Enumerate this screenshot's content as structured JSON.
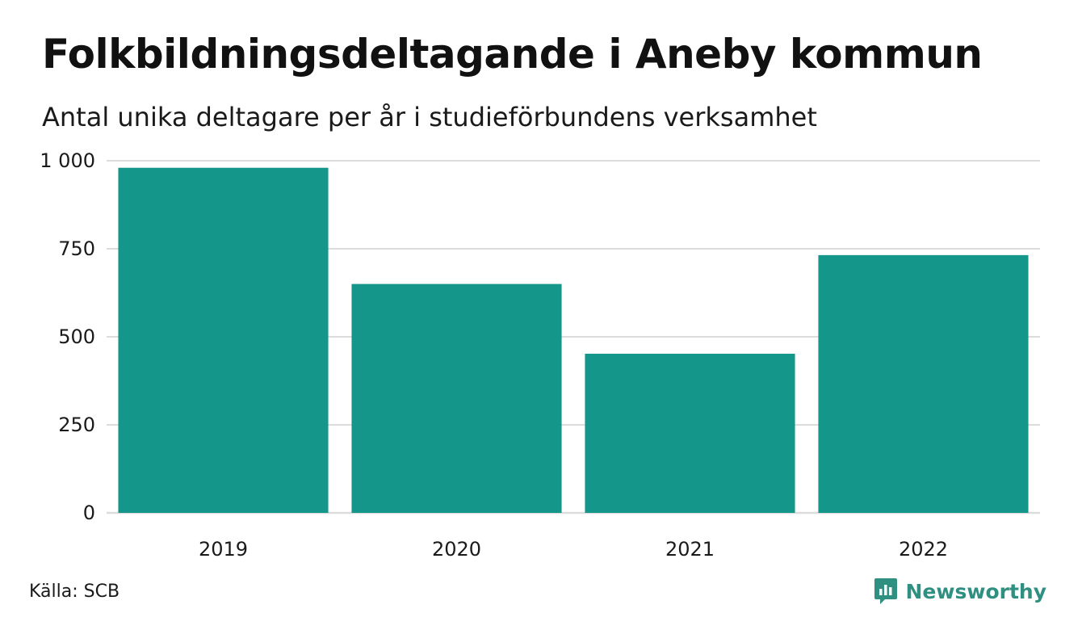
{
  "title": "Folkbildningsdeltagande i Aneby kommun",
  "subtitle": "Antal unika deltagare per år i studieförbundens verksamhet",
  "source": "Källa: SCB",
  "brand": {
    "name": "Newsworthy",
    "icon": "newsworthy-logo-icon",
    "color": "#2f8f80"
  },
  "colors": {
    "bar": "#14968a",
    "grid": "#dcdcdc"
  },
  "chart_data": {
    "type": "bar",
    "categories": [
      "2019",
      "2020",
      "2021",
      "2022"
    ],
    "values": [
      980,
      650,
      452,
      732
    ],
    "title": "Folkbildningsdeltagande i Aneby kommun",
    "subtitle": "Antal unika deltagare per år i studieförbundens verksamhet",
    "xlabel": "",
    "ylabel": "",
    "ylim": [
      0,
      1000
    ],
    "yticks": [
      0,
      250,
      500,
      750,
      1000
    ],
    "ytick_labels": [
      "0",
      "250",
      "500",
      "750",
      "1 000"
    ],
    "grid": true,
    "legend": "none"
  }
}
